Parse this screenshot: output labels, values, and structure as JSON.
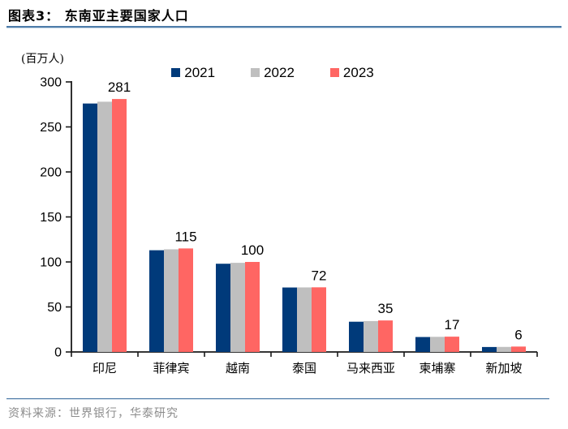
{
  "header": {
    "title": "图表3： 东南亚主要国家人口"
  },
  "chart_data": {
    "type": "bar",
    "title": "东南亚主要国家人口",
    "unit_label": "(百万人)",
    "xlabel": "",
    "ylabel": "(百万人)",
    "categories": [
      "印尼",
      "菲律宾",
      "越南",
      "泰国",
      "马来西亚",
      "柬埔寨",
      "新加坡"
    ],
    "series": [
      {
        "name": "2021",
        "color": "#003a7a",
        "values": [
          276,
          113,
          98,
          71.6,
          33.6,
          16.6,
          5.5
        ]
      },
      {
        "name": "2022",
        "color": "#bfbfbf",
        "values": [
          278,
          114,
          99,
          71.7,
          34.3,
          16.8,
          5.6
        ]
      },
      {
        "name": "2023",
        "color": "#ff6663",
        "values": [
          281,
          115,
          100,
          71.8,
          35,
          17,
          6
        ]
      }
    ],
    "data_labels": [
      "281",
      "115",
      "100",
      "72",
      "35",
      "17",
      "6"
    ],
    "data_label_series": "2023",
    "ylim": [
      0,
      300
    ],
    "yticks": [
      0,
      50,
      100,
      150,
      200,
      250,
      300
    ],
    "legend_position": "top",
    "grid": false
  },
  "footer": {
    "source": "资料来源：世界银行，华泰研究"
  },
  "colors": {
    "accent_rule": "#4d7ca9",
    "axis": "#1a1a1a",
    "text": "#000000",
    "source_text": "#8c8c8c",
    "series_2021": "#003a7a",
    "series_2022": "#bfbfbf",
    "series_2023": "#ff6663"
  }
}
